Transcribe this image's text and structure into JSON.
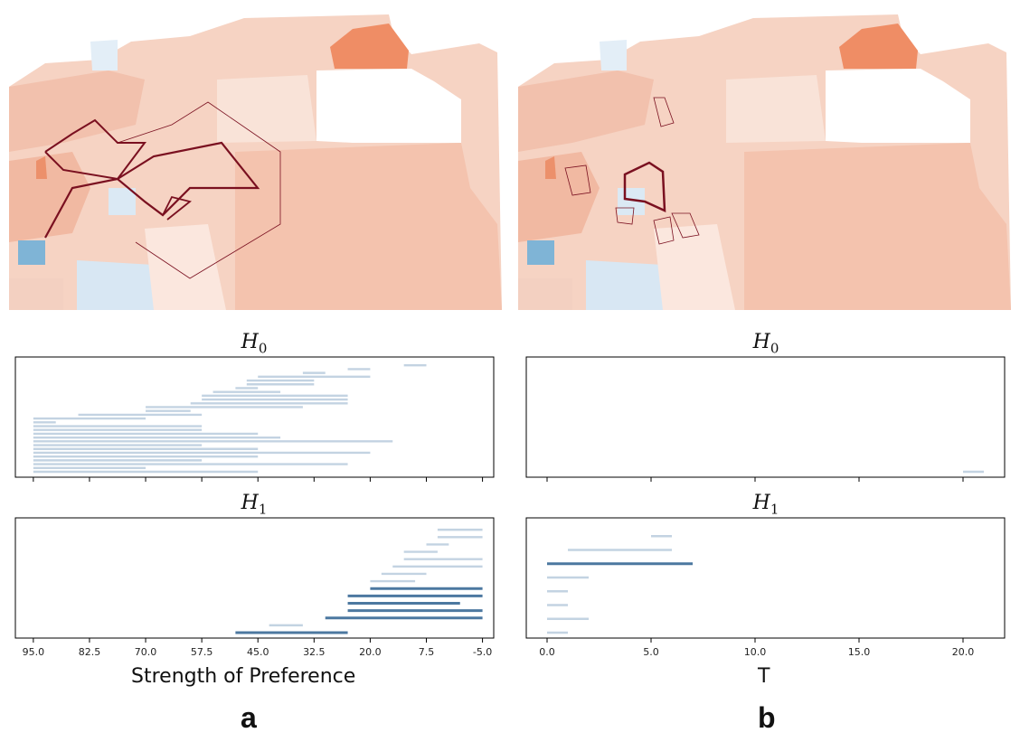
{
  "figure": {
    "panel_a_label": "a",
    "panel_b_label": "b",
    "xlabel_a": "Strength of Preference",
    "xlabel_b": "T"
  },
  "colors": {
    "light_bar": "#c3d3e2",
    "dark_bar": "#4c78a0",
    "frame": "#000000",
    "cycle_stroke": "#7a1020"
  },
  "chart_data": [
    {
      "id": "a-H0",
      "type": "barcode",
      "title": "H_0",
      "title_main": "H",
      "title_sub": "0",
      "xlim": [
        99.0,
        -7.5
      ],
      "xticks": [
        95.0,
        82.5,
        70.0,
        57.5,
        45.0,
        32.5,
        20.0,
        7.5,
        -5.0
      ],
      "xtick_labels": [
        "95.0",
        "82.5",
        "70.0",
        "57.5",
        "45.0",
        "32.5",
        "20.0",
        "7.5",
        "-5.0"
      ],
      "show_tick_labels": false,
      "bars": [
        [
          45,
          95
        ],
        [
          70,
          95
        ],
        [
          25,
          95
        ],
        [
          57.5,
          95
        ],
        [
          45,
          95
        ],
        [
          20,
          95
        ],
        [
          45,
          95
        ],
        [
          57.5,
          95
        ],
        [
          15,
          95
        ],
        [
          40,
          95
        ],
        [
          45,
          95
        ],
        [
          57.5,
          95
        ],
        [
          57.5,
          95
        ],
        [
          90,
          95
        ],
        [
          70,
          95
        ],
        [
          57.5,
          85
        ],
        [
          60,
          70
        ],
        [
          35,
          70
        ],
        [
          25,
          60
        ],
        [
          25,
          57.5
        ],
        [
          25,
          57.5
        ],
        [
          40,
          55
        ],
        [
          45,
          50
        ],
        [
          32.5,
          47.5
        ],
        [
          32.5,
          47.5
        ],
        [
          20,
          45
        ],
        [
          30,
          35
        ],
        [
          20,
          25
        ],
        [
          7.5,
          12.5
        ]
      ],
      "dark_bars": []
    },
    {
      "id": "a-H1",
      "type": "barcode",
      "title": "H_1",
      "title_main": "H",
      "title_sub": "1",
      "xlim": [
        99.0,
        -7.5
      ],
      "xticks": [
        95.0,
        82.5,
        70.0,
        57.5,
        45.0,
        32.5,
        20.0,
        7.5,
        -5.0
      ],
      "xtick_labels": [
        "95.0",
        "82.5",
        "70.0",
        "57.5",
        "45.0",
        "32.5",
        "20.0",
        "7.5",
        "-5.0"
      ],
      "show_tick_labels": true,
      "bars": [
        [
          25,
          50
        ],
        [
          35,
          42.5
        ],
        [
          -5,
          30
        ],
        [
          -5,
          25
        ],
        [
          0,
          25
        ],
        [
          -5,
          25
        ],
        [
          -5,
          20
        ],
        [
          10,
          20
        ],
        [
          7.5,
          17.5
        ],
        [
          -5,
          15
        ],
        [
          -5,
          12.5
        ],
        [
          5,
          12.5
        ],
        [
          2.5,
          7.5
        ],
        [
          -5,
          5
        ],
        [
          -5,
          5
        ]
      ],
      "dark_bars": [
        0,
        2,
        3,
        4,
        5,
        6
      ]
    },
    {
      "id": "b-H0",
      "type": "barcode",
      "title": "H_0",
      "title_main": "H",
      "title_sub": "0",
      "xlim": [
        -1.0,
        22.0
      ],
      "xticks": [
        0.0,
        5.0,
        10.0,
        15.0,
        20.0
      ],
      "xtick_labels": [
        "0.0",
        "5.0",
        "10.0",
        "15.0",
        "20.0"
      ],
      "show_tick_labels": false,
      "bars": [
        [
          20.0,
          21.0
        ]
      ],
      "dark_bars": []
    },
    {
      "id": "b-H1",
      "type": "barcode",
      "title": "H_1",
      "title_main": "H",
      "title_sub": "1",
      "xlim": [
        -1.0,
        22.0
      ],
      "xticks": [
        0.0,
        5.0,
        10.0,
        15.0,
        20.0
      ],
      "xtick_labels": [
        "0.0",
        "5.0",
        "10.0",
        "15.0",
        "20.0"
      ],
      "show_tick_labels": true,
      "bars": [
        [
          0,
          1
        ],
        [
          0,
          2
        ],
        [
          0,
          1
        ],
        [
          0,
          1
        ],
        [
          0,
          2
        ],
        [
          0,
          7
        ],
        [
          1,
          6
        ],
        [
          5,
          6
        ]
      ],
      "dark_bars": [
        5
      ]
    }
  ]
}
